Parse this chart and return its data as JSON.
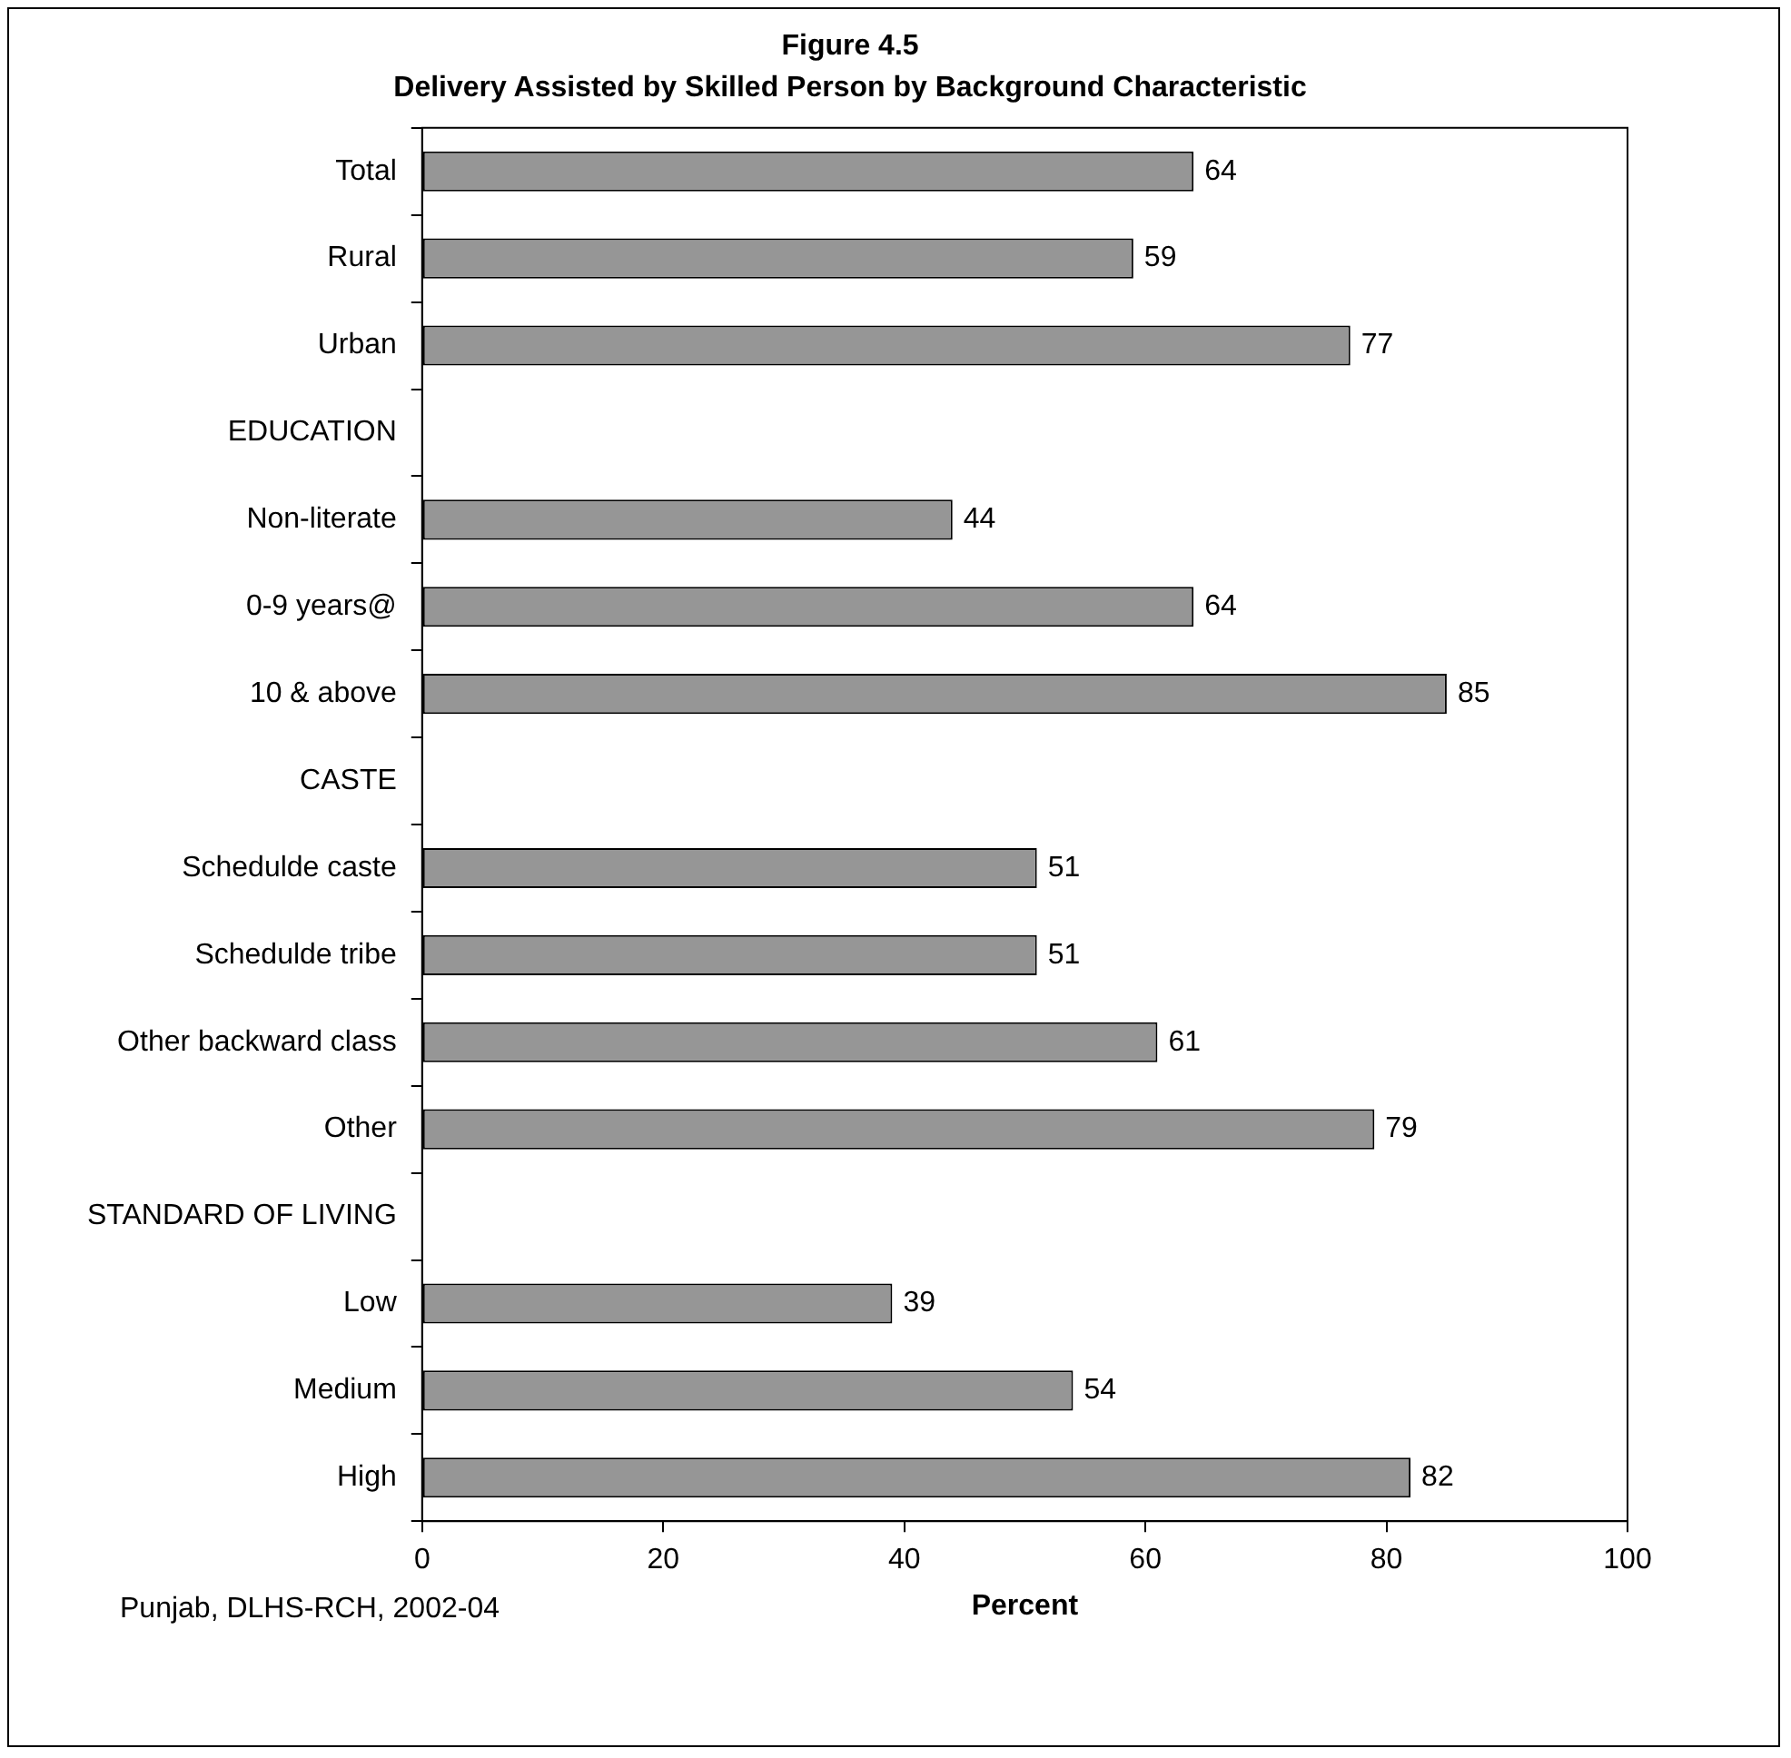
{
  "chart_data": {
    "type": "bar",
    "orientation": "horizontal",
    "title": "Figure 4.5",
    "subtitle": "Delivery Assisted by Skilled Person by Background Characteristic",
    "xlabel": "Percent",
    "categories": [
      "Total",
      "Rural",
      "Urban",
      "EDUCATION",
      "Non-literate",
      "0-9 years@",
      "10 & above",
      "CASTE",
      "Schedulde caste",
      "Schedulde tribe",
      "Other backward class",
      "Other",
      "STANDARD OF LIVING",
      "Low",
      "Medium",
      "High"
    ],
    "values": [
      64,
      59,
      77,
      null,
      44,
      64,
      85,
      null,
      51,
      51,
      61,
      79,
      null,
      39,
      54,
      82
    ],
    "color": "#969696",
    "xlim": [
      0,
      100
    ],
    "xticks": [
      0,
      20,
      40,
      60,
      80,
      100
    ],
    "grid": false,
    "legend": false,
    "data_labels": true,
    "annotations": [
      "Punjab, DLHS-RCH, 2002-04"
    ]
  }
}
